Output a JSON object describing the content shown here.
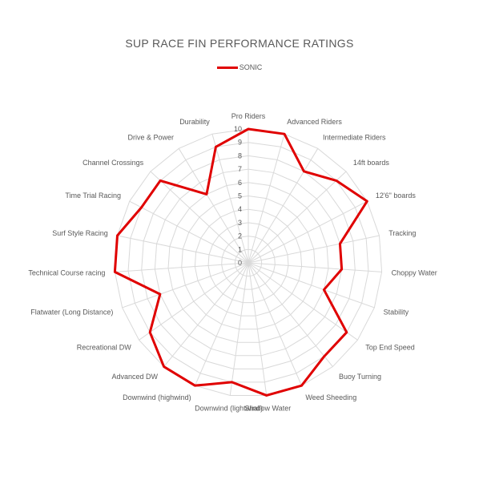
{
  "chart_data": {
    "type": "radar",
    "title": "SUP RACE FIN PERFORMANCE RATINGS",
    "rlim": [
      0,
      10
    ],
    "ticks": [
      "0",
      "1",
      "2",
      "3",
      "4",
      "5",
      "6",
      "7",
      "8",
      "9",
      "10"
    ],
    "grid": true,
    "legend_position": "top",
    "categories": [
      "Pro Riders",
      "Advanced Riders",
      "Intermediate Riders",
      "14ft boards",
      "12'6\" boards",
      "Tracking",
      "Choppy Water",
      "Stability",
      "Top End Speed",
      "Buoy Turning",
      "Weed Sheeding",
      "Shallow Water",
      "Downwind (lightwind)",
      "Downwind (highwind)",
      "Advanced DW",
      "Recreational DW",
      "Flatwater (Long Distance)",
      "Technical Course racing",
      "Surf Style Racing",
      "Time Trial Racing",
      "Channel Crossings",
      "Drive & Power",
      "Durability"
    ],
    "series": [
      {
        "name": "SONIC",
        "color": "#e00000",
        "values": [
          10,
          10,
          8,
          9,
          10,
          7,
          7,
          6,
          9,
          9,
          10,
          10,
          9,
          10,
          10,
          9,
          7,
          10,
          10,
          9,
          9,
          6,
          9
        ]
      }
    ]
  }
}
